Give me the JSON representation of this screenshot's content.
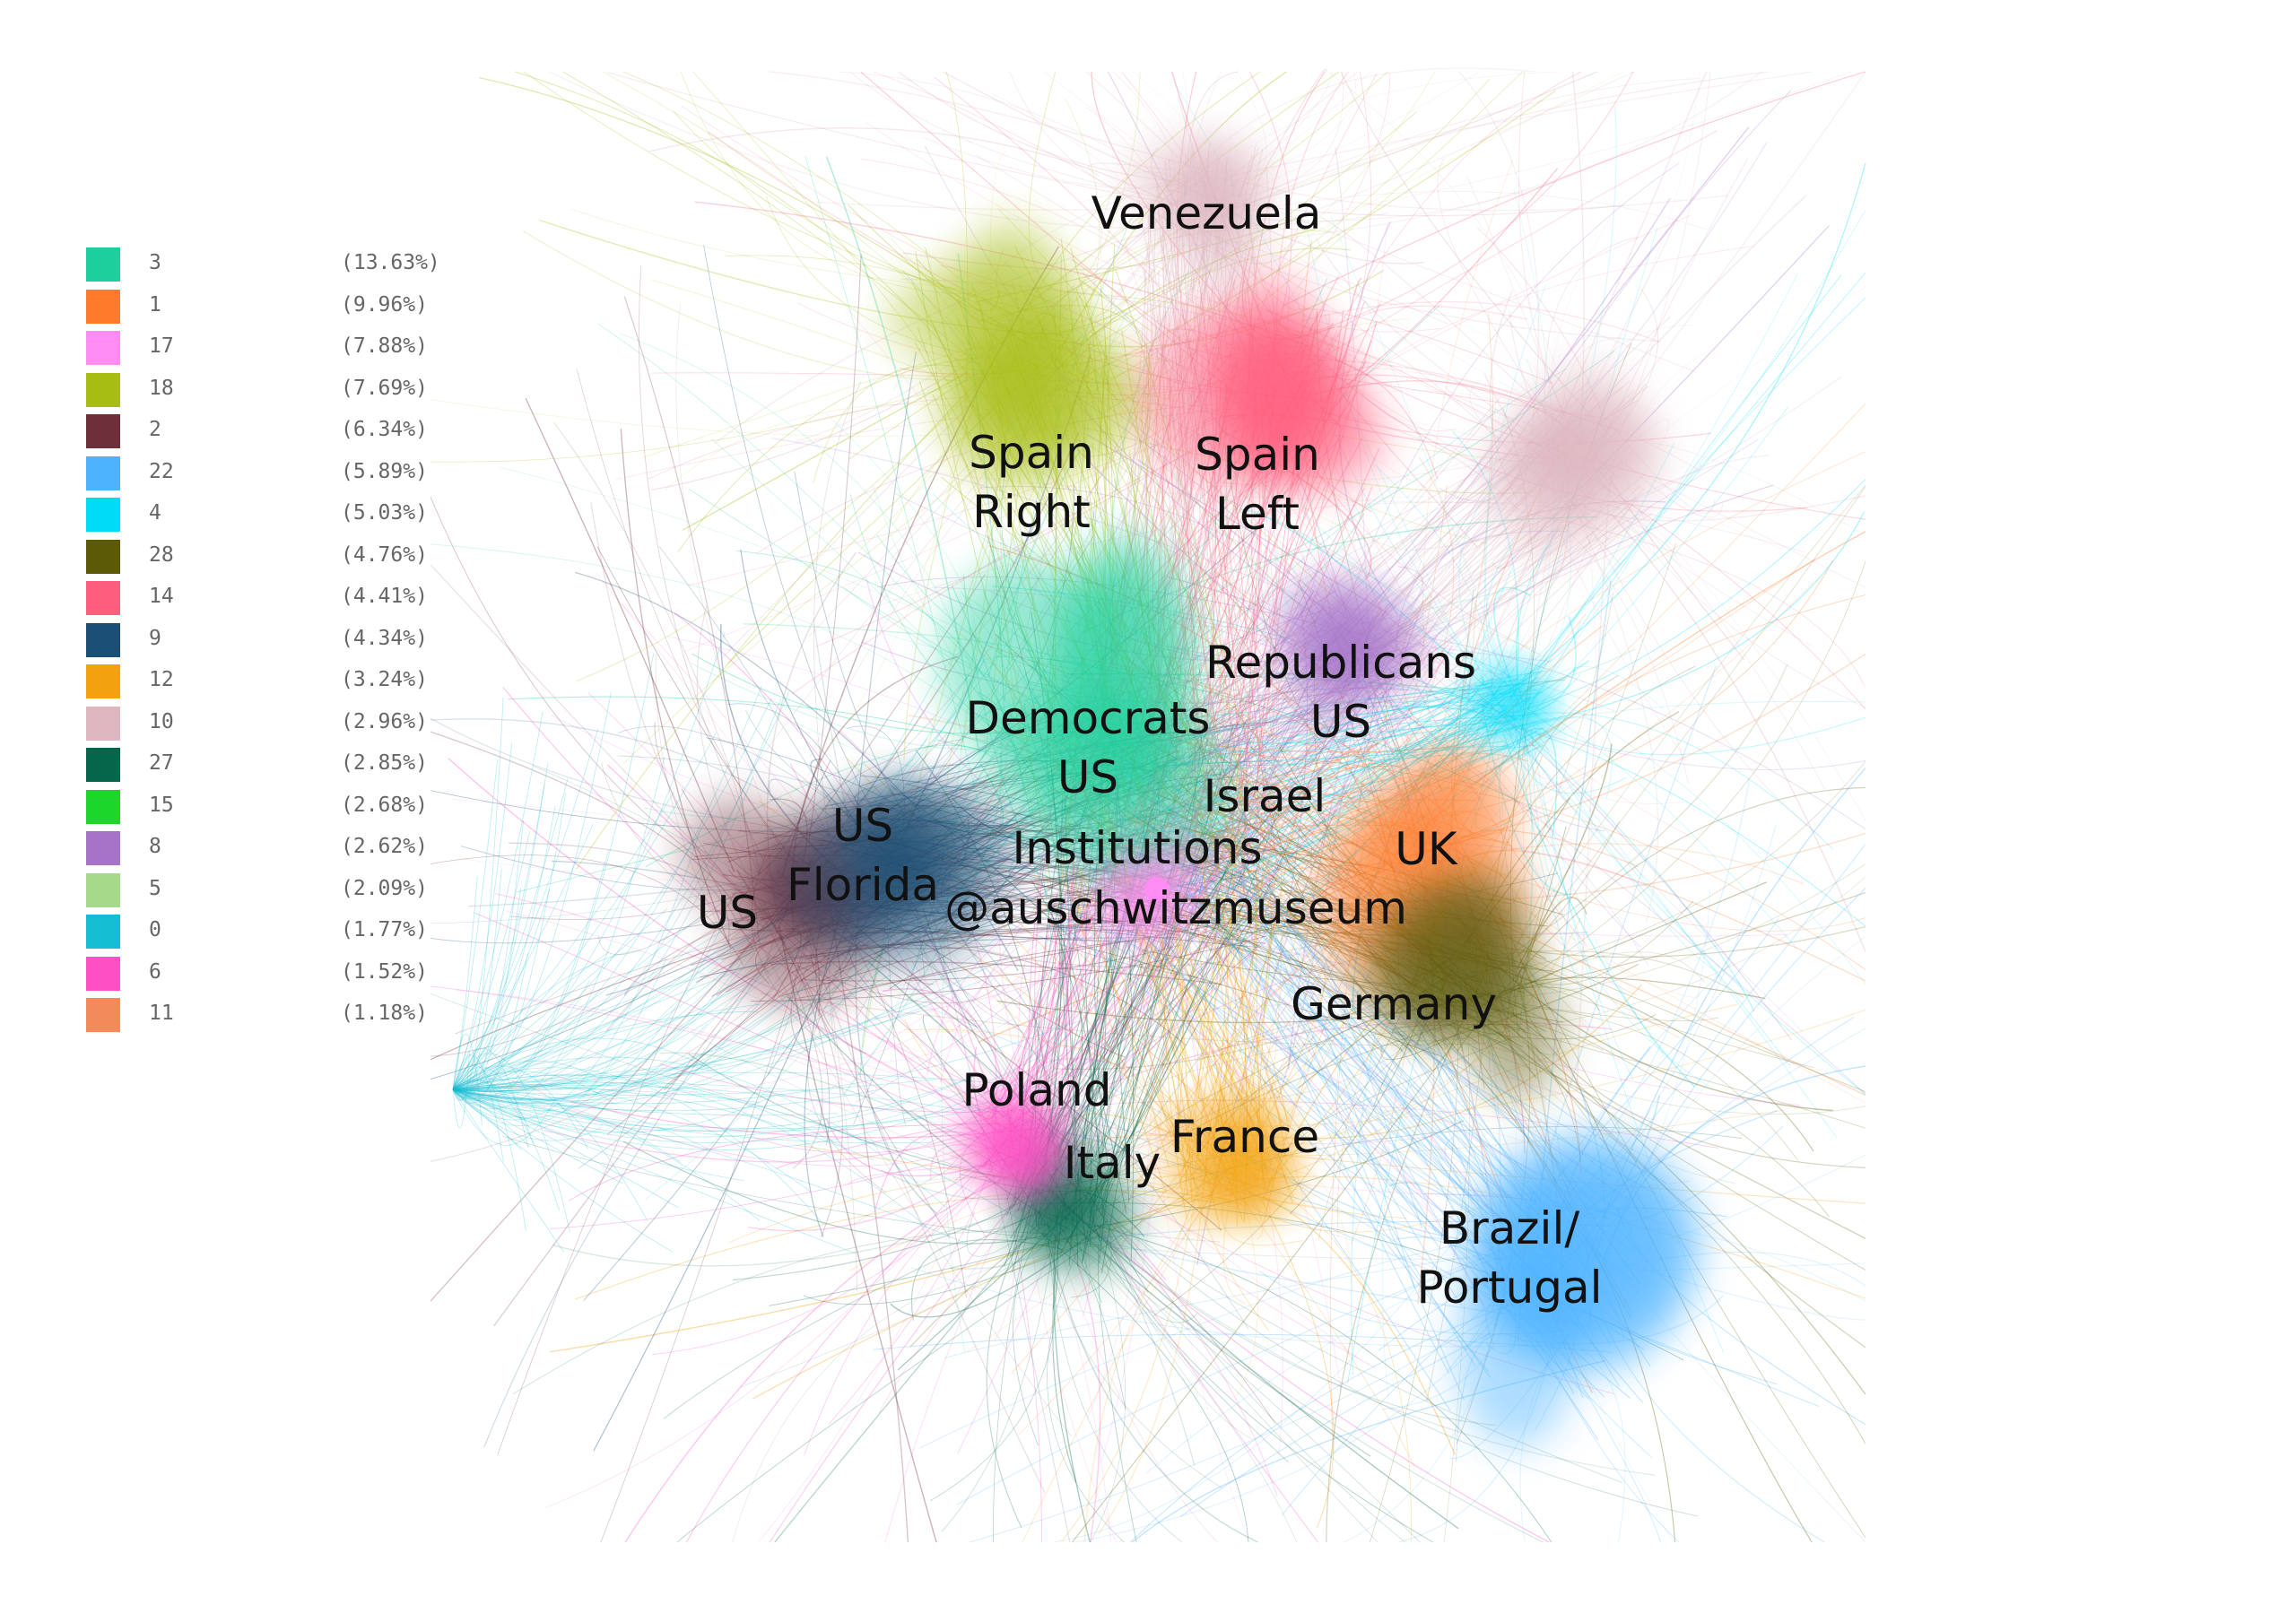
{
  "legend": {
    "items": [
      {
        "label": "3",
        "percent": "(13.63%)",
        "color": "#1ccf9c"
      },
      {
        "label": "1",
        "percent": "(9.96%)",
        "color": "#ff7a2a"
      },
      {
        "label": "17",
        "percent": "(7.88%)",
        "color": "#ff8cf2"
      },
      {
        "label": "18",
        "percent": "(7.69%)",
        "color": "#a7bd13"
      },
      {
        "label": "2",
        "percent": "(6.34%)",
        "color": "#6e2f3a"
      },
      {
        "label": "22",
        "percent": "(5.89%)",
        "color": "#4db3ff"
      },
      {
        "label": "4",
        "percent": "(5.03%)",
        "color": "#00dbf7"
      },
      {
        "label": "28",
        "percent": "(4.76%)",
        "color": "#5c5a07"
      },
      {
        "label": "14",
        "percent": "(4.41%)",
        "color": "#ff5d7d"
      },
      {
        "label": "9",
        "percent": "(4.34%)",
        "color": "#1b4f75"
      },
      {
        "label": "12",
        "percent": "(3.24%)",
        "color": "#f2a20d"
      },
      {
        "label": "10",
        "percent": "(2.96%)",
        "color": "#ddb6bf"
      },
      {
        "label": "27",
        "percent": "(2.85%)",
        "color": "#06664a"
      },
      {
        "label": "15",
        "percent": "(2.68%)",
        "color": "#1cd62b"
      },
      {
        "label": "8",
        "percent": "(2.62%)",
        "color": "#a673c9"
      },
      {
        "label": "5",
        "percent": "(2.09%)",
        "color": "#a6d98a"
      },
      {
        "label": "0",
        "percent": "(1.77%)",
        "color": "#14bdd1"
      },
      {
        "label": "6",
        "percent": "(1.52%)",
        "color": "#ff4fc4"
      },
      {
        "label": "11",
        "percent": "(1.18%)",
        "color": "#f28a5c"
      }
    ]
  },
  "regions": {
    "venezuela": "Venezuela",
    "spain_right": "Spain\nRight",
    "spain_left": "Spain\nLeft",
    "republicans": "Republicans\nUS",
    "democrats": "Democrats\nUS",
    "israel": "Israel",
    "us_florida": "US\nFlorida",
    "institutions": "Institutions",
    "uk": "UK",
    "us": "US",
    "auschwitz": "@auschwitzmuseum",
    "germany": "Germany",
    "poland": "Poland",
    "france": "France",
    "italy": "Italy",
    "brazil": "Brazil/\nPortugal"
  }
}
